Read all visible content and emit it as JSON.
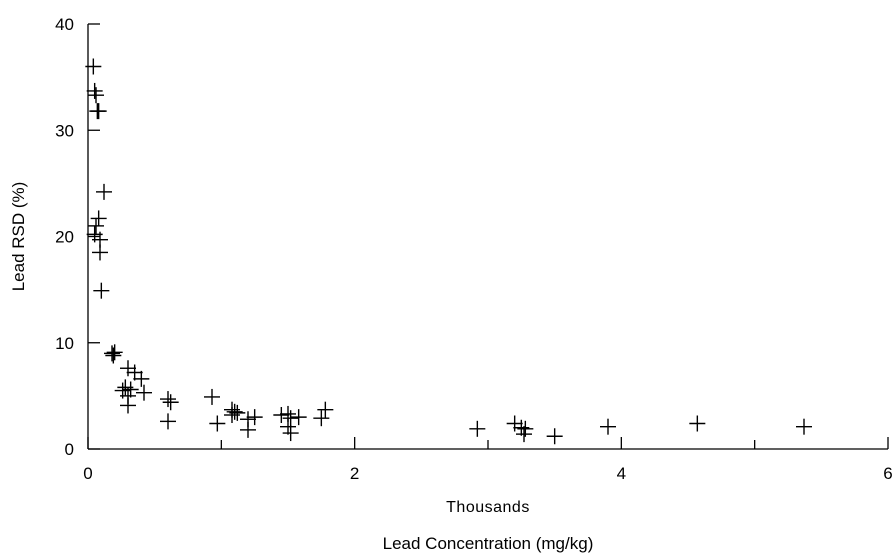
{
  "chart_data": {
    "type": "scatter",
    "title": "",
    "xlabel": "Lead Concentration (mg/kg)",
    "x_unit_label": "Thousands",
    "ylabel": "Lead RSD (%)",
    "xlim": [
      0,
      6
    ],
    "ylim": [
      0,
      40
    ],
    "x_ticks": [
      0,
      2,
      4,
      6
    ],
    "x_tick_labels": [
      "0",
      "2",
      "4",
      "6"
    ],
    "x_minor_ticks": [
      1,
      3,
      5
    ],
    "y_ticks": [
      0,
      10,
      20,
      30,
      40
    ],
    "y_tick_labels": [
      "0",
      "10",
      "20",
      "30",
      "40"
    ],
    "grid": false,
    "legend": "none",
    "marker": "plus",
    "marker_color": "#000000",
    "series": [
      {
        "points": [
          [
            0.04,
            36.0
          ],
          [
            0.05,
            33.7
          ],
          [
            0.06,
            33.3
          ],
          [
            0.07,
            31.8
          ],
          [
            0.08,
            31.8
          ],
          [
            0.12,
            24.2
          ],
          [
            0.08,
            21.7
          ],
          [
            0.06,
            21.0
          ],
          [
            0.05,
            20.2
          ],
          [
            0.09,
            19.7
          ],
          [
            0.09,
            18.5
          ],
          [
            0.1,
            14.9
          ],
          [
            0.18,
            9.0
          ],
          [
            0.2,
            9.1
          ],
          [
            0.19,
            8.8
          ],
          [
            0.3,
            7.6
          ],
          [
            0.35,
            7.2
          ],
          [
            0.4,
            6.6
          ],
          [
            0.28,
            5.8
          ],
          [
            0.32,
            5.6
          ],
          [
            0.26,
            5.5
          ],
          [
            0.3,
            5.0
          ],
          [
            0.42,
            5.3
          ],
          [
            0.3,
            4.1
          ],
          [
            0.6,
            4.7
          ],
          [
            0.62,
            4.4
          ],
          [
            0.6,
            2.6
          ],
          [
            0.93,
            4.9
          ],
          [
            0.97,
            2.4
          ],
          [
            1.08,
            3.7
          ],
          [
            1.1,
            3.5
          ],
          [
            1.12,
            3.4
          ],
          [
            1.08,
            3.2
          ],
          [
            1.2,
            2.8
          ],
          [
            1.25,
            3.0
          ],
          [
            1.2,
            1.8
          ],
          [
            1.45,
            3.2
          ],
          [
            1.5,
            3.3
          ],
          [
            1.52,
            2.9
          ],
          [
            1.58,
            3.0
          ],
          [
            1.5,
            2.1
          ],
          [
            1.52,
            1.5
          ],
          [
            1.78,
            3.7
          ],
          [
            1.75,
            2.9
          ],
          [
            2.92,
            1.9
          ],
          [
            3.2,
            2.4
          ],
          [
            3.25,
            2.0
          ],
          [
            3.28,
            1.9
          ],
          [
            3.27,
            1.4
          ],
          [
            3.5,
            1.2
          ],
          [
            3.9,
            2.1
          ],
          [
            4.57,
            2.4
          ],
          [
            5.37,
            2.1
          ]
        ]
      }
    ]
  }
}
